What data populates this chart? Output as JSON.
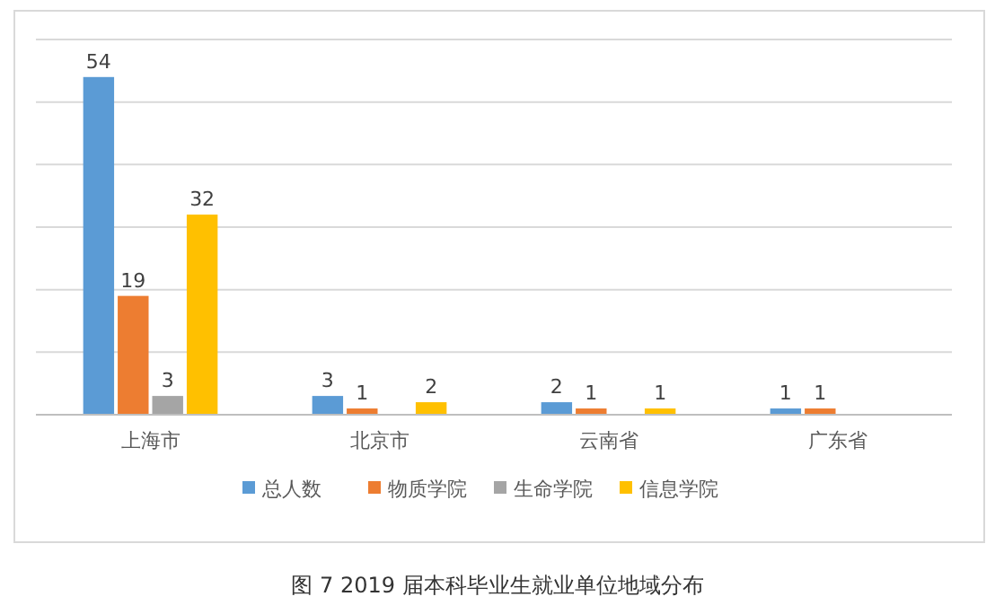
{
  "chart_data": {
    "type": "bar",
    "title": "图 7 2019 届本科毕业生就业单位地域分布",
    "categories": [
      "上海市",
      "北京市",
      "云南省",
      "广东省"
    ],
    "series": [
      {
        "name": "总人数",
        "color": "#5b9bd5",
        "values": [
          54,
          3,
          2,
          1
        ]
      },
      {
        "name": "物质学院",
        "color": "#ed7d31",
        "values": [
          19,
          1,
          1,
          1
        ]
      },
      {
        "name": "生命学院",
        "color": "#a5a5a5",
        "values": [
          3,
          null,
          null,
          null
        ]
      },
      {
        "name": "信息学院",
        "color": "#ffc000",
        "values": [
          32,
          2,
          1,
          null
        ]
      }
    ],
    "ylim": [
      0,
      60
    ],
    "yticks": [
      {
        "value": 0,
        "label": null
      },
      {
        "value": 10,
        "label": null
      },
      {
        "value": 20,
        "label": null
      },
      {
        "value": 30,
        "label": null
      },
      {
        "value": 40,
        "label": null
      },
      {
        "value": 50,
        "label": null
      },
      {
        "value": 60,
        "label": null
      }
    ],
    "grid": "y",
    "data_labels": true,
    "legend": "bottom",
    "tick_labels": "x"
  }
}
